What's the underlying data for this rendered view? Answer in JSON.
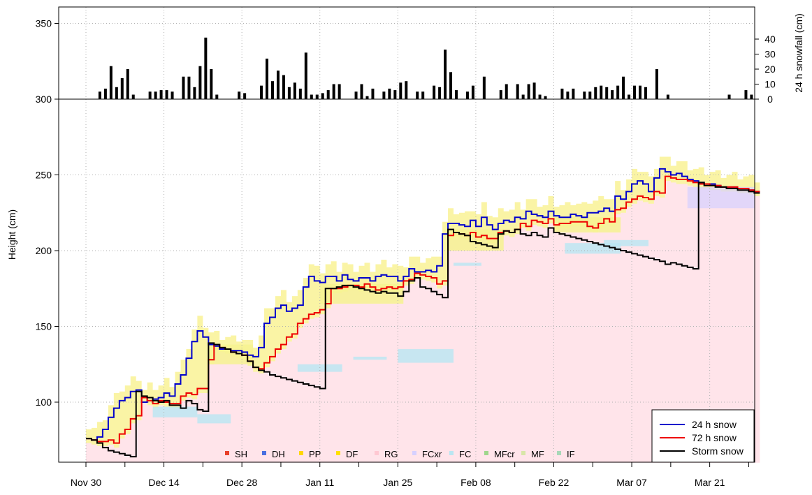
{
  "chart_data": {
    "type": "line",
    "title": "",
    "ylabel": "Height (cm)",
    "ylabel_right": "24 h snowfall (cm)",
    "ylim": [
      60,
      360
    ],
    "y_ticks": [
      100,
      150,
      200,
      250,
      300,
      350
    ],
    "y2_ticks": [
      0,
      10,
      20,
      30,
      40
    ],
    "x_tick_labels": [
      "Nov 30",
      "Dec 14",
      "Dec 28",
      "Jan 11",
      "Jan 25",
      "Feb 08",
      "Feb 22",
      "Mar 07",
      "Mar 21"
    ],
    "x_tick_days": [
      0,
      14,
      28,
      42,
      56,
      70,
      84,
      98,
      112
    ],
    "grid": true,
    "legend_lines": {
      "position": "bottom-right",
      "items": [
        {
          "label": "24 h snow",
          "color": "#0000cc"
        },
        {
          "label": "72 h snow",
          "color": "#ee0000"
        },
        {
          "label": "Storm snow",
          "color": "#000000"
        }
      ]
    },
    "legend_grain": {
      "position": "bottom",
      "items": [
        {
          "label": "SH",
          "color": "#e8402a"
        },
        {
          "label": "DH",
          "color": "#4a6fe0"
        },
        {
          "label": "PP",
          "color": "#ffd700"
        },
        {
          "label": "DF",
          "color": "#ffe000"
        },
        {
          "label": "RG",
          "color": "#ffc8d2"
        },
        {
          "label": "FCxr",
          "color": "#d6d0ff"
        },
        {
          "label": "FC",
          "color": "#b9e6f2"
        },
        {
          "label": "MFcr",
          "color": "#9fd68c"
        },
        {
          "label": "MF",
          "color": "#d8e6a8"
        },
        {
          "label": "IF",
          "color": "#a8d8b8"
        }
      ]
    },
    "snowfall_bars": [
      {
        "day": 2,
        "value": 5
      },
      {
        "day": 3,
        "value": 7
      },
      {
        "day": 4,
        "value": 22
      },
      {
        "day": 5,
        "value": 8
      },
      {
        "day": 6,
        "value": 14
      },
      {
        "day": 7,
        "value": 20
      },
      {
        "day": 8,
        "value": 3
      },
      {
        "day": 11,
        "value": 5
      },
      {
        "day": 12,
        "value": 5
      },
      {
        "day": 13,
        "value": 6
      },
      {
        "day": 14,
        "value": 6
      },
      {
        "day": 15,
        "value": 5
      },
      {
        "day": 17,
        "value": 15
      },
      {
        "day": 18,
        "value": 15
      },
      {
        "day": 19,
        "value": 8
      },
      {
        "day": 20,
        "value": 22
      },
      {
        "day": 21,
        "value": 41
      },
      {
        "day": 22,
        "value": 20
      },
      {
        "day": 23,
        "value": 3
      },
      {
        "day": 27,
        "value": 5
      },
      {
        "day": 28,
        "value": 4
      },
      {
        "day": 31,
        "value": 9
      },
      {
        "day": 32,
        "value": 27
      },
      {
        "day": 33,
        "value": 12
      },
      {
        "day": 34,
        "value": 19
      },
      {
        "day": 35,
        "value": 16
      },
      {
        "day": 36,
        "value": 8
      },
      {
        "day": 37,
        "value": 11
      },
      {
        "day": 38,
        "value": 7
      },
      {
        "day": 39,
        "value": 31
      },
      {
        "day": 40,
        "value": 3
      },
      {
        "day": 41,
        "value": 3
      },
      {
        "day": 42,
        "value": 4
      },
      {
        "day": 43,
        "value": 6
      },
      {
        "day": 44,
        "value": 10
      },
      {
        "day": 45,
        "value": 10
      },
      {
        "day": 48,
        "value": 5
      },
      {
        "day": 49,
        "value": 10
      },
      {
        "day": 50,
        "value": 2
      },
      {
        "day": 51,
        "value": 7
      },
      {
        "day": 53,
        "value": 5
      },
      {
        "day": 54,
        "value": 7
      },
      {
        "day": 55,
        "value": 6
      },
      {
        "day": 56,
        "value": 11
      },
      {
        "day": 57,
        "value": 12
      },
      {
        "day": 59,
        "value": 5
      },
      {
        "day": 60,
        "value": 5
      },
      {
        "day": 62,
        "value": 9
      },
      {
        "day": 63,
        "value": 8
      },
      {
        "day": 64,
        "value": 33
      },
      {
        "day": 65,
        "value": 18
      },
      {
        "day": 66,
        "value": 6
      },
      {
        "day": 68,
        "value": 5
      },
      {
        "day": 69,
        "value": 9
      },
      {
        "day": 71,
        "value": 15
      },
      {
        "day": 74,
        "value": 6
      },
      {
        "day": 75,
        "value": 10
      },
      {
        "day": 77,
        "value": 10
      },
      {
        "day": 78,
        "value": 3
      },
      {
        "day": 79,
        "value": 10
      },
      {
        "day": 80,
        "value": 11
      },
      {
        "day": 81,
        "value": 3
      },
      {
        "day": 82,
        "value": 2
      },
      {
        "day": 85,
        "value": 7
      },
      {
        "day": 86,
        "value": 5
      },
      {
        "day": 87,
        "value": 7
      },
      {
        "day": 89,
        "value": 5
      },
      {
        "day": 90,
        "value": 5
      },
      {
        "day": 91,
        "value": 8
      },
      {
        "day": 92,
        "value": 9
      },
      {
        "day": 93,
        "value": 8
      },
      {
        "day": 94,
        "value": 6
      },
      {
        "day": 95,
        "value": 9
      },
      {
        "day": 96,
        "value": 15
      },
      {
        "day": 97,
        "value": 3
      },
      {
        "day": 98,
        "value": 9
      },
      {
        "day": 99,
        "value": 9
      },
      {
        "day": 100,
        "value": 8
      },
      {
        "day": 102,
        "value": 20
      },
      {
        "day": 104,
        "value": 3
      },
      {
        "day": 115,
        "value": 3
      },
      {
        "day": 118,
        "value": 6
      },
      {
        "day": 119,
        "value": 3
      }
    ],
    "series": [
      {
        "name": "24 h snow",
        "color": "#0000cc",
        "x": [
          0,
          1,
          2,
          3,
          4,
          5,
          6,
          7,
          8,
          9,
          10,
          11,
          12,
          13,
          14,
          15,
          16,
          17,
          18,
          19,
          20,
          21,
          22,
          23,
          24,
          25,
          26,
          27,
          28,
          29,
          30,
          31,
          32,
          33,
          34,
          35,
          36,
          37,
          38,
          39,
          40,
          41,
          42,
          43,
          44,
          45,
          46,
          47,
          48,
          49,
          50,
          51,
          52,
          53,
          54,
          55,
          56,
          57,
          58,
          59,
          60,
          61,
          62,
          63,
          64,
          65,
          66,
          67,
          68,
          69,
          70,
          71,
          72,
          73,
          74,
          75,
          76,
          77,
          78,
          79,
          80,
          81,
          82,
          83,
          84,
          85,
          86,
          87,
          88,
          89,
          90,
          91,
          92,
          93,
          94,
          95,
          96,
          97,
          98,
          99,
          100,
          101,
          102,
          103,
          104,
          105,
          106,
          107,
          108,
          109,
          110,
          111,
          112,
          113,
          114,
          115,
          116,
          117,
          118,
          119,
          120
        ],
        "y": [
          76,
          75,
          77,
          82,
          90,
          96,
          101,
          103,
          107,
          108,
          100,
          103,
          102,
          103,
          106,
          104,
          112,
          118,
          129,
          140,
          147,
          143,
          138,
          137,
          135,
          135,
          134,
          134,
          133,
          131,
          130,
          136,
          152,
          156,
          162,
          164,
          160,
          162,
          164,
          176,
          183,
          180,
          179,
          183,
          183,
          180,
          184,
          181,
          180,
          182,
          182,
          180,
          183,
          184,
          183,
          183,
          180,
          183,
          188,
          186,
          186,
          187,
          186,
          190,
          211,
          218,
          218,
          217,
          216,
          220,
          216,
          222,
          217,
          214,
          218,
          220,
          219,
          222,
          221,
          226,
          224,
          223,
          222,
          226,
          223,
          222,
          222,
          224,
          223,
          222,
          225,
          225,
          226,
          228,
          226,
          236,
          234,
          239,
          244,
          246,
          244,
          239,
          248,
          254,
          252,
          250,
          251,
          249,
          247,
          246,
          245,
          244,
          244,
          243,
          242,
          242,
          242,
          241,
          241,
          240,
          239
        ]
      },
      {
        "name": "72 h snow",
        "color": "#ee0000",
        "x": [
          0,
          1,
          2,
          3,
          4,
          5,
          6,
          7,
          8,
          9,
          10,
          11,
          12,
          13,
          14,
          15,
          16,
          17,
          18,
          19,
          20,
          21,
          22,
          23,
          24,
          25,
          26,
          27,
          28,
          29,
          30,
          31,
          32,
          33,
          34,
          35,
          36,
          37,
          38,
          39,
          40,
          41,
          42,
          43,
          44,
          45,
          46,
          47,
          48,
          49,
          50,
          51,
          52,
          53,
          54,
          55,
          56,
          57,
          58,
          59,
          60,
          61,
          62,
          63,
          64,
          65,
          66,
          67,
          68,
          69,
          70,
          71,
          72,
          73,
          74,
          75,
          76,
          77,
          78,
          79,
          80,
          81,
          82,
          83,
          84,
          85,
          86,
          87,
          88,
          89,
          90,
          91,
          92,
          93,
          94,
          95,
          96,
          97,
          98,
          99,
          100,
          101,
          102,
          103,
          104,
          105,
          106,
          107,
          108,
          109,
          110,
          111,
          112,
          113,
          114,
          115,
          116,
          117,
          118,
          119,
          120
        ],
        "y": [
          76,
          75,
          74,
          74,
          75,
          73,
          79,
          82,
          89,
          91,
          103,
          101,
          99,
          101,
          100,
          99,
          99,
          104,
          106,
          105,
          109,
          109,
          128,
          138,
          136,
          135,
          133,
          132,
          131,
          127,
          123,
          122,
          126,
          130,
          135,
          138,
          143,
          145,
          152,
          155,
          158,
          159,
          161,
          165,
          175,
          175,
          176,
          177,
          177,
          176,
          178,
          176,
          174,
          175,
          176,
          175,
          176,
          180,
          181,
          185,
          184,
          183,
          182,
          178,
          180,
          210,
          212,
          211,
          210,
          212,
          209,
          210,
          208,
          208,
          212,
          213,
          212,
          214,
          218,
          216,
          220,
          219,
          218,
          221,
          217,
          218,
          218,
          219,
          219,
          219,
          216,
          215,
          218,
          221,
          219,
          227,
          228,
          232,
          234,
          236,
          235,
          234,
          239,
          238,
          249,
          248,
          247,
          247,
          246,
          245,
          244,
          244,
          243,
          243,
          242,
          242,
          242,
          241,
          241,
          240,
          239
        ]
      },
      {
        "name": "Storm snow",
        "color": "#000000",
        "x": [
          0,
          1,
          2,
          3,
          4,
          5,
          6,
          7,
          8,
          9,
          10,
          11,
          12,
          13,
          14,
          15,
          16,
          17,
          18,
          19,
          20,
          21,
          22,
          23,
          24,
          25,
          26,
          27,
          28,
          29,
          30,
          31,
          32,
          33,
          34,
          35,
          36,
          37,
          38,
          39,
          40,
          41,
          42,
          43,
          44,
          45,
          46,
          47,
          48,
          49,
          50,
          51,
          52,
          53,
          54,
          55,
          56,
          57,
          58,
          59,
          60,
          61,
          62,
          63,
          64,
          65,
          66,
          67,
          68,
          69,
          70,
          71,
          72,
          73,
          74,
          75,
          76,
          77,
          78,
          79,
          80,
          81,
          82,
          83,
          84,
          85,
          86,
          87,
          88,
          89,
          90,
          91,
          92,
          93,
          94,
          95,
          96,
          97,
          98,
          99,
          100,
          101,
          102,
          103,
          104,
          105,
          106,
          107,
          108,
          109,
          110,
          111,
          112,
          113,
          114,
          115,
          116,
          117,
          118,
          119,
          120
        ],
        "y": [
          76,
          75,
          73,
          70,
          68,
          67,
          66,
          65,
          64,
          107,
          104,
          103,
          101,
          100,
          101,
          98,
          98,
          96,
          101,
          99,
          95,
          94,
          139,
          138,
          136,
          135,
          133,
          132,
          131,
          127,
          123,
          121,
          120,
          118,
          117,
          116,
          115,
          114,
          113,
          112,
          111,
          110,
          109,
          175,
          175,
          176,
          177,
          177,
          176,
          175,
          174,
          173,
          172,
          173,
          172,
          172,
          170,
          173,
          180,
          182,
          176,
          175,
          173,
          171,
          169,
          214,
          212,
          211,
          210,
          206,
          205,
          204,
          203,
          202,
          211,
          213,
          212,
          214,
          211,
          210,
          212,
          210,
          209,
          215,
          212,
          211,
          210,
          209,
          208,
          207,
          206,
          205,
          204,
          203,
          202,
          201,
          200,
          199,
          198,
          197,
          196,
          195,
          194,
          193,
          191,
          192,
          191,
          190,
          189,
          188,
          245,
          243,
          243,
          242,
          242,
          241,
          241,
          240,
          240,
          239,
          238
        ]
      }
    ]
  }
}
